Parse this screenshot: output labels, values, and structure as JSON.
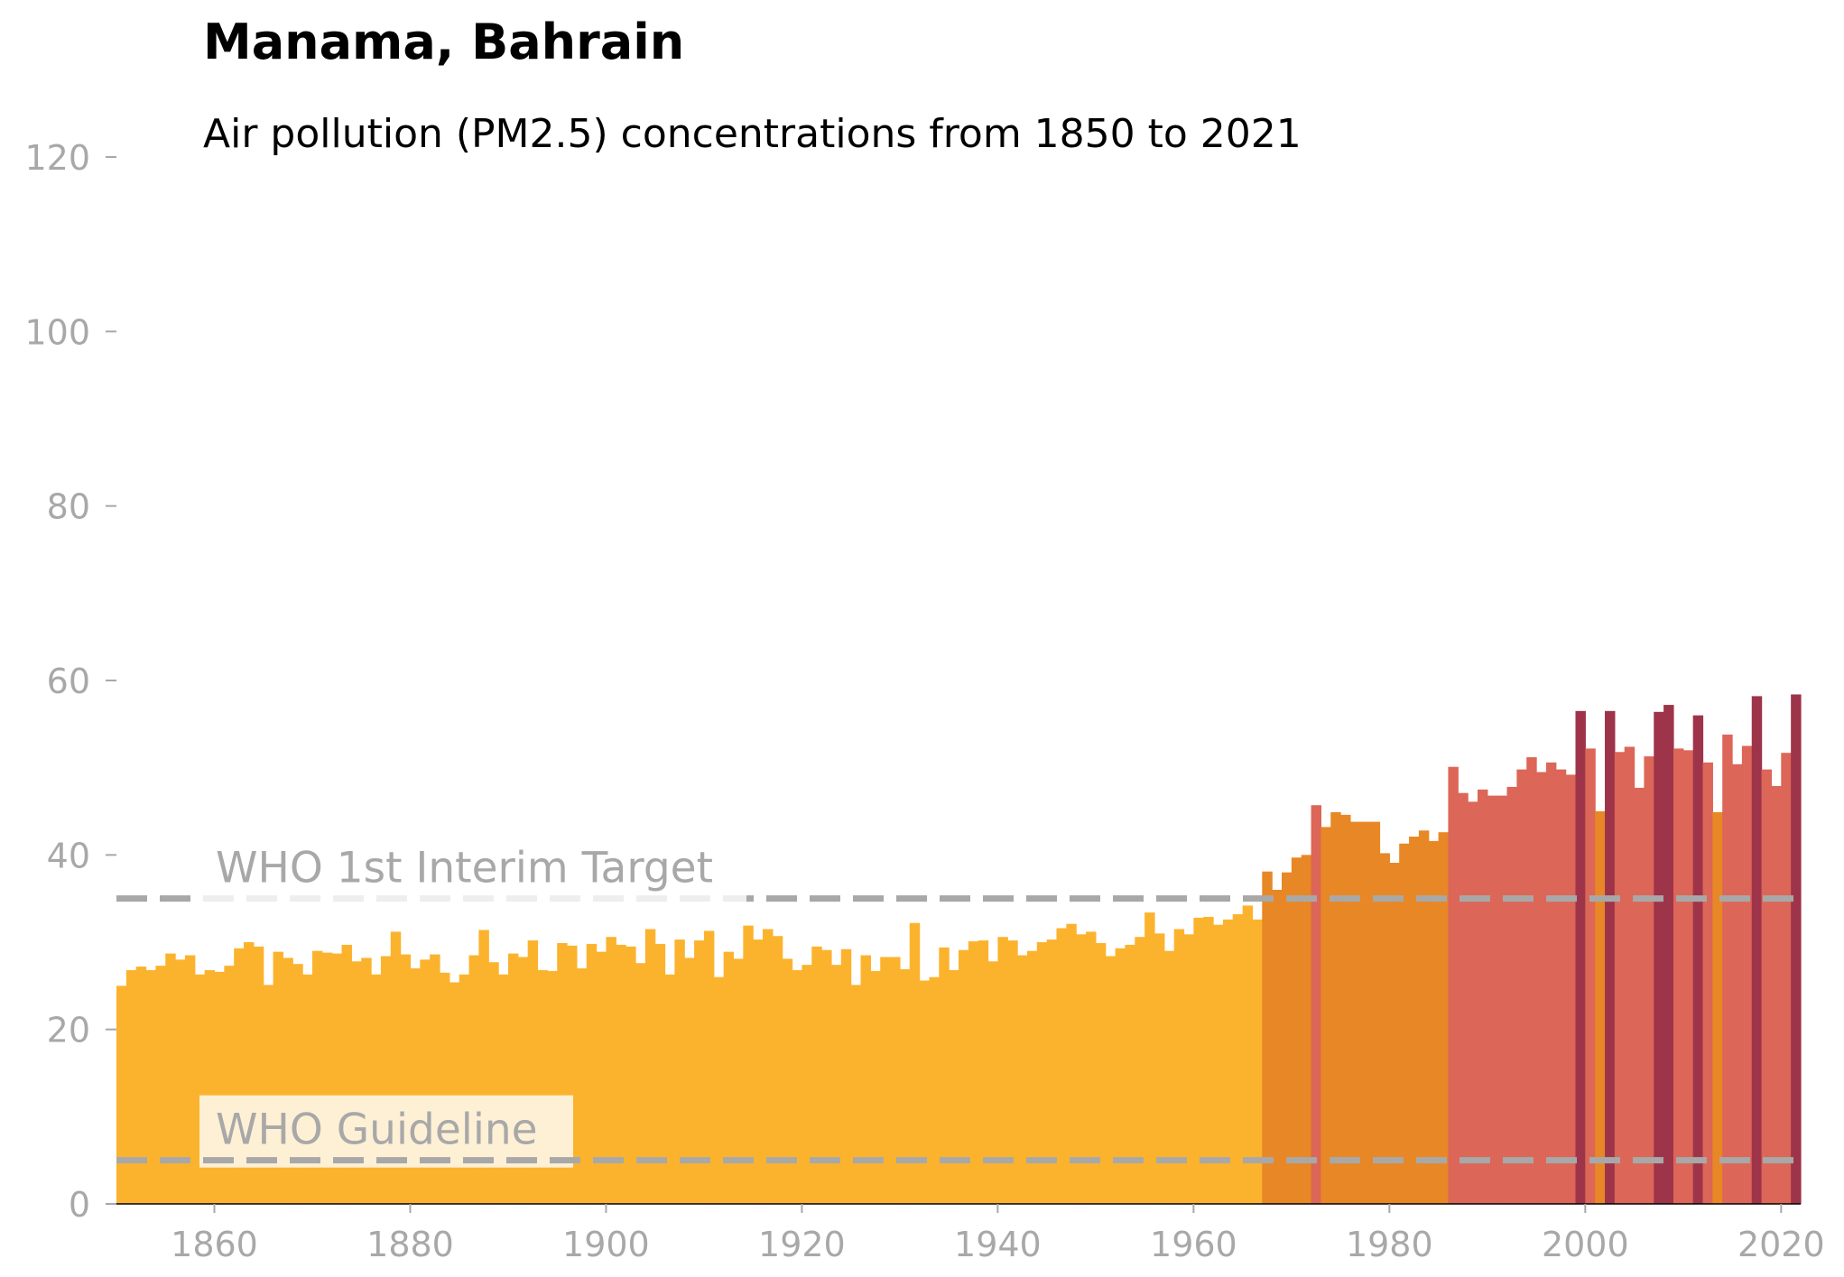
{
  "chart_data": {
    "type": "bar",
    "title": "Manama, Bahrain",
    "subtitle": "Air pollution (PM2.5) concentrations from 1850 to 2021",
    "xlabel": "",
    "ylabel": "",
    "xlim": [
      1850,
      2022
    ],
    "ylim": [
      0,
      120
    ],
    "grid": false,
    "x_ticks": [
      1860,
      1880,
      1900,
      1920,
      1940,
      1960,
      1980,
      2000,
      2020
    ],
    "y_ticks": [
      0,
      20,
      40,
      60,
      80,
      100,
      120
    ],
    "years": [
      1850,
      1851,
      1852,
      1853,
      1854,
      1855,
      1856,
      1857,
      1858,
      1859,
      1860,
      1861,
      1862,
      1863,
      1864,
      1865,
      1866,
      1867,
      1868,
      1869,
      1870,
      1871,
      1872,
      1873,
      1874,
      1875,
      1876,
      1877,
      1878,
      1879,
      1880,
      1881,
      1882,
      1883,
      1884,
      1885,
      1886,
      1887,
      1888,
      1889,
      1890,
      1891,
      1892,
      1893,
      1894,
      1895,
      1896,
      1897,
      1898,
      1899,
      1900,
      1901,
      1902,
      1903,
      1904,
      1905,
      1906,
      1907,
      1908,
      1909,
      1910,
      1911,
      1912,
      1913,
      1914,
      1915,
      1916,
      1917,
      1918,
      1919,
      1920,
      1921,
      1922,
      1923,
      1924,
      1925,
      1926,
      1927,
      1928,
      1929,
      1930,
      1931,
      1932,
      1933,
      1934,
      1935,
      1936,
      1937,
      1938,
      1939,
      1940,
      1941,
      1942,
      1943,
      1944,
      1945,
      1946,
      1947,
      1948,
      1949,
      1950,
      1951,
      1952,
      1953,
      1954,
      1955,
      1956,
      1957,
      1958,
      1959,
      1960,
      1961,
      1962,
      1963,
      1964,
      1965,
      1966,
      1967,
      1968,
      1969,
      1970,
      1971,
      1972,
      1973,
      1974,
      1975,
      1976,
      1977,
      1978,
      1979,
      1980,
      1981,
      1982,
      1983,
      1984,
      1985,
      1986,
      1987,
      1988,
      1989,
      1990,
      1991,
      1992,
      1993,
      1994,
      1995,
      1996,
      1997,
      1998,
      1999,
      2000,
      2001,
      2002,
      2003,
      2004,
      2005,
      2006,
      2007,
      2008,
      2009,
      2010,
      2011,
      2012,
      2013,
      2014,
      2015,
      2016,
      2017,
      2018,
      2019,
      2020,
      2021
    ],
    "values": [
      25.0,
      26.8,
      27.2,
      26.8,
      27.3,
      28.7,
      28.0,
      28.5,
      26.3,
      26.8,
      26.6,
      27.3,
      29.3,
      30.0,
      29.5,
      25.1,
      28.9,
      28.2,
      27.5,
      26.3,
      29.0,
      28.8,
      28.7,
      29.7,
      27.8,
      28.2,
      26.3,
      28.4,
      31.2,
      28.6,
      27.0,
      28.0,
      28.6,
      26.5,
      25.4,
      26.3,
      28.5,
      31.4,
      27.7,
      26.3,
      28.7,
      28.3,
      30.2,
      26.8,
      26.7,
      29.9,
      29.6,
      27.0,
      29.8,
      28.9,
      30.6,
      29.7,
      29.5,
      27.6,
      31.5,
      29.8,
      26.3,
      30.3,
      28.2,
      30.2,
      31.3,
      26.0,
      28.9,
      28.1,
      31.9,
      30.3,
      31.5,
      30.7,
      28.1,
      26.8,
      27.4,
      29.5,
      29.1,
      27.4,
      29.2,
      25.1,
      28.5,
      26.7,
      28.3,
      28.3,
      26.9,
      32.2,
      25.6,
      26.0,
      29.4,
      26.8,
      29.1,
      30.1,
      30.2,
      27.8,
      30.6,
      30.2,
      28.5,
      29.0,
      30.0,
      30.3,
      31.6,
      32.1,
      30.9,
      31.2,
      29.9,
      28.4,
      29.3,
      29.7,
      30.6,
      33.4,
      31.0,
      29.0,
      31.5,
      30.9,
      32.8,
      32.9,
      32.0,
      32.6,
      33.2,
      34.2,
      32.6,
      38.1,
      36.0,
      38.0,
      39.7,
      40.0,
      45.7,
      43.2,
      44.9,
      44.6,
      43.8,
      43.8,
      43.8,
      40.2,
      39.1,
      41.3,
      42.1,
      42.8,
      41.6,
      42.6,
      50.1,
      47.1,
      46.1,
      47.5,
      46.8,
      46.8,
      47.8,
      49.8,
      51.2,
      49.5,
      50.6,
      49.8,
      49.2,
      56.5,
      52.2,
      45.0,
      56.5,
      51.8,
      52.4,
      47.7,
      51.3,
      56.4,
      57.2,
      52.2,
      52.0,
      56.0,
      50.6,
      44.9,
      53.8,
      50.4,
      52.5,
      58.2,
      49.8,
      47.9,
      51.7,
      58.4
    ],
    "color_scale": {
      "below_35": "#fbb32e",
      "35_to_45": "#e88725",
      "45_to_55": "#dc6657",
      "above_55": "#9e3449"
    },
    "reference_lines": [
      {
        "label": "WHO 1st Interim Target",
        "value": 35
      },
      {
        "label": "WHO Guideline",
        "value": 5
      }
    ],
    "colors": {
      "reference_line": "#a8a8a8",
      "tick_text": "#a8a8a8",
      "axis_line": "#000000"
    }
  }
}
